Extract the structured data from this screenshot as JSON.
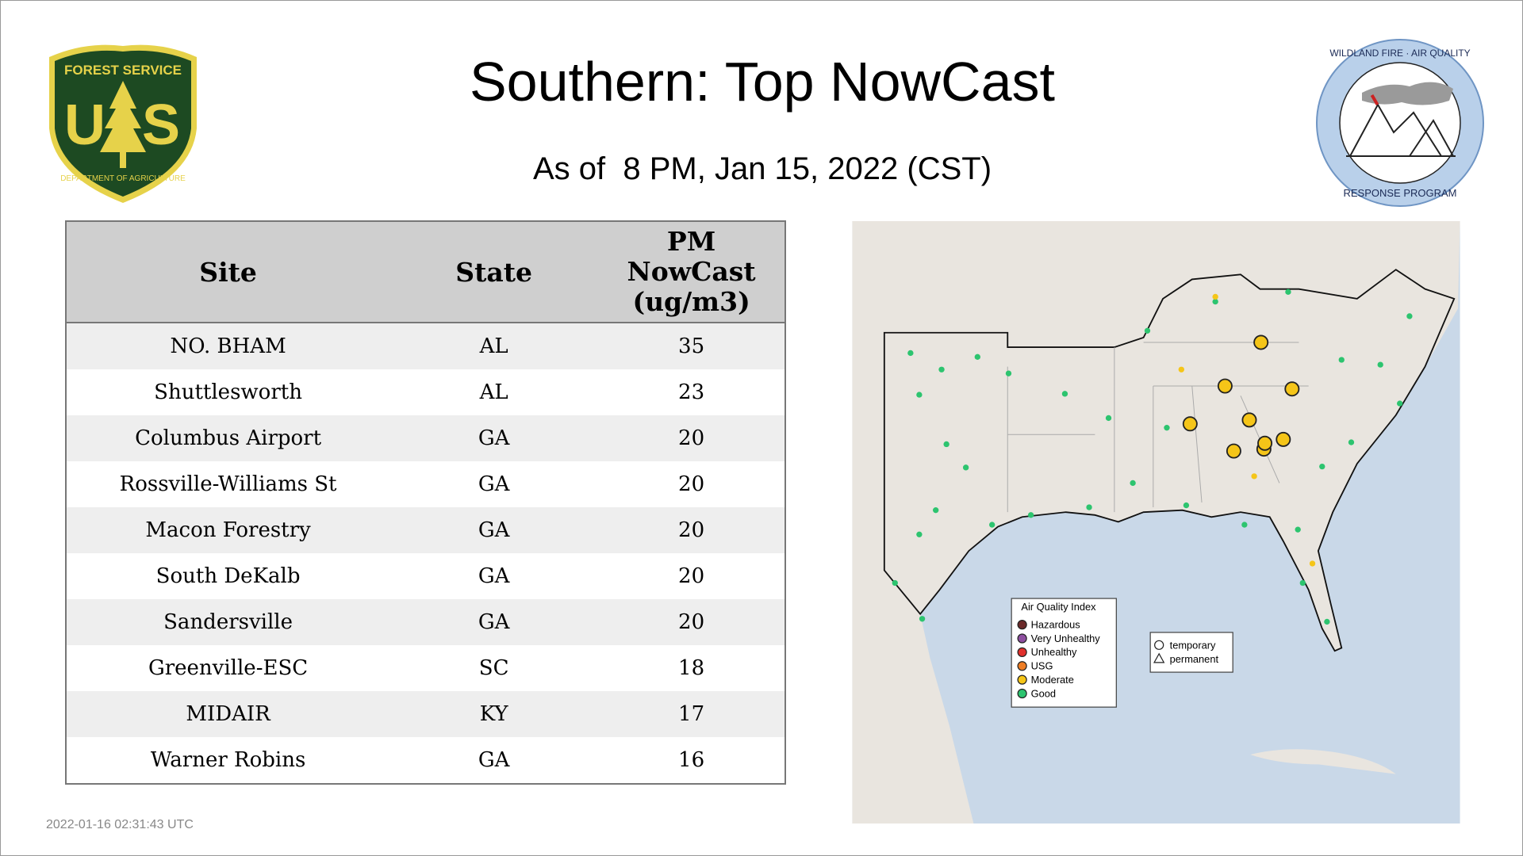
{
  "header": {
    "title": "Southern: Top NowCast",
    "subtitle": "As of  8 PM, Jan 15, 2022 (CST)"
  },
  "logos": {
    "left": {
      "top": "FOREST SERVICE",
      "letters": [
        "U",
        "S"
      ],
      "bottom": "DEPARTMENT OF AGRICULTURE"
    },
    "right": {
      "top": "WILDLAND FIRE · AIR QUALITY",
      "bottom": "RESPONSE PROGRAM"
    }
  },
  "table": {
    "columns": [
      "Site",
      "State",
      "PM NowCast (ug/m3)"
    ],
    "rows": [
      [
        "NO. BHAM",
        "AL",
        35
      ],
      [
        "Shuttlesworth",
        "AL",
        23
      ],
      [
        "Columbus Airport",
        "GA",
        20
      ],
      [
        "Rossville-Williams St",
        "GA",
        20
      ],
      [
        "Macon Forestry",
        "GA",
        20
      ],
      [
        "South DeKalb",
        "GA",
        20
      ],
      [
        "Sandersville",
        "GA",
        20
      ],
      [
        "Greenville-ESC",
        "SC",
        18
      ],
      [
        "MIDAIR",
        "KY",
        17
      ],
      [
        "Warner Robins",
        "GA",
        16
      ]
    ]
  },
  "map": {
    "legend": {
      "title": "Air Quality Index",
      "items": [
        "Hazardous",
        "Very Unhealthy",
        "Unhealthy",
        "USG",
        "Moderate",
        "Good"
      ]
    },
    "site_types": [
      "temporary",
      "permanent"
    ]
  },
  "timestamp": "2022-01-16 02:31:43 UTC"
}
